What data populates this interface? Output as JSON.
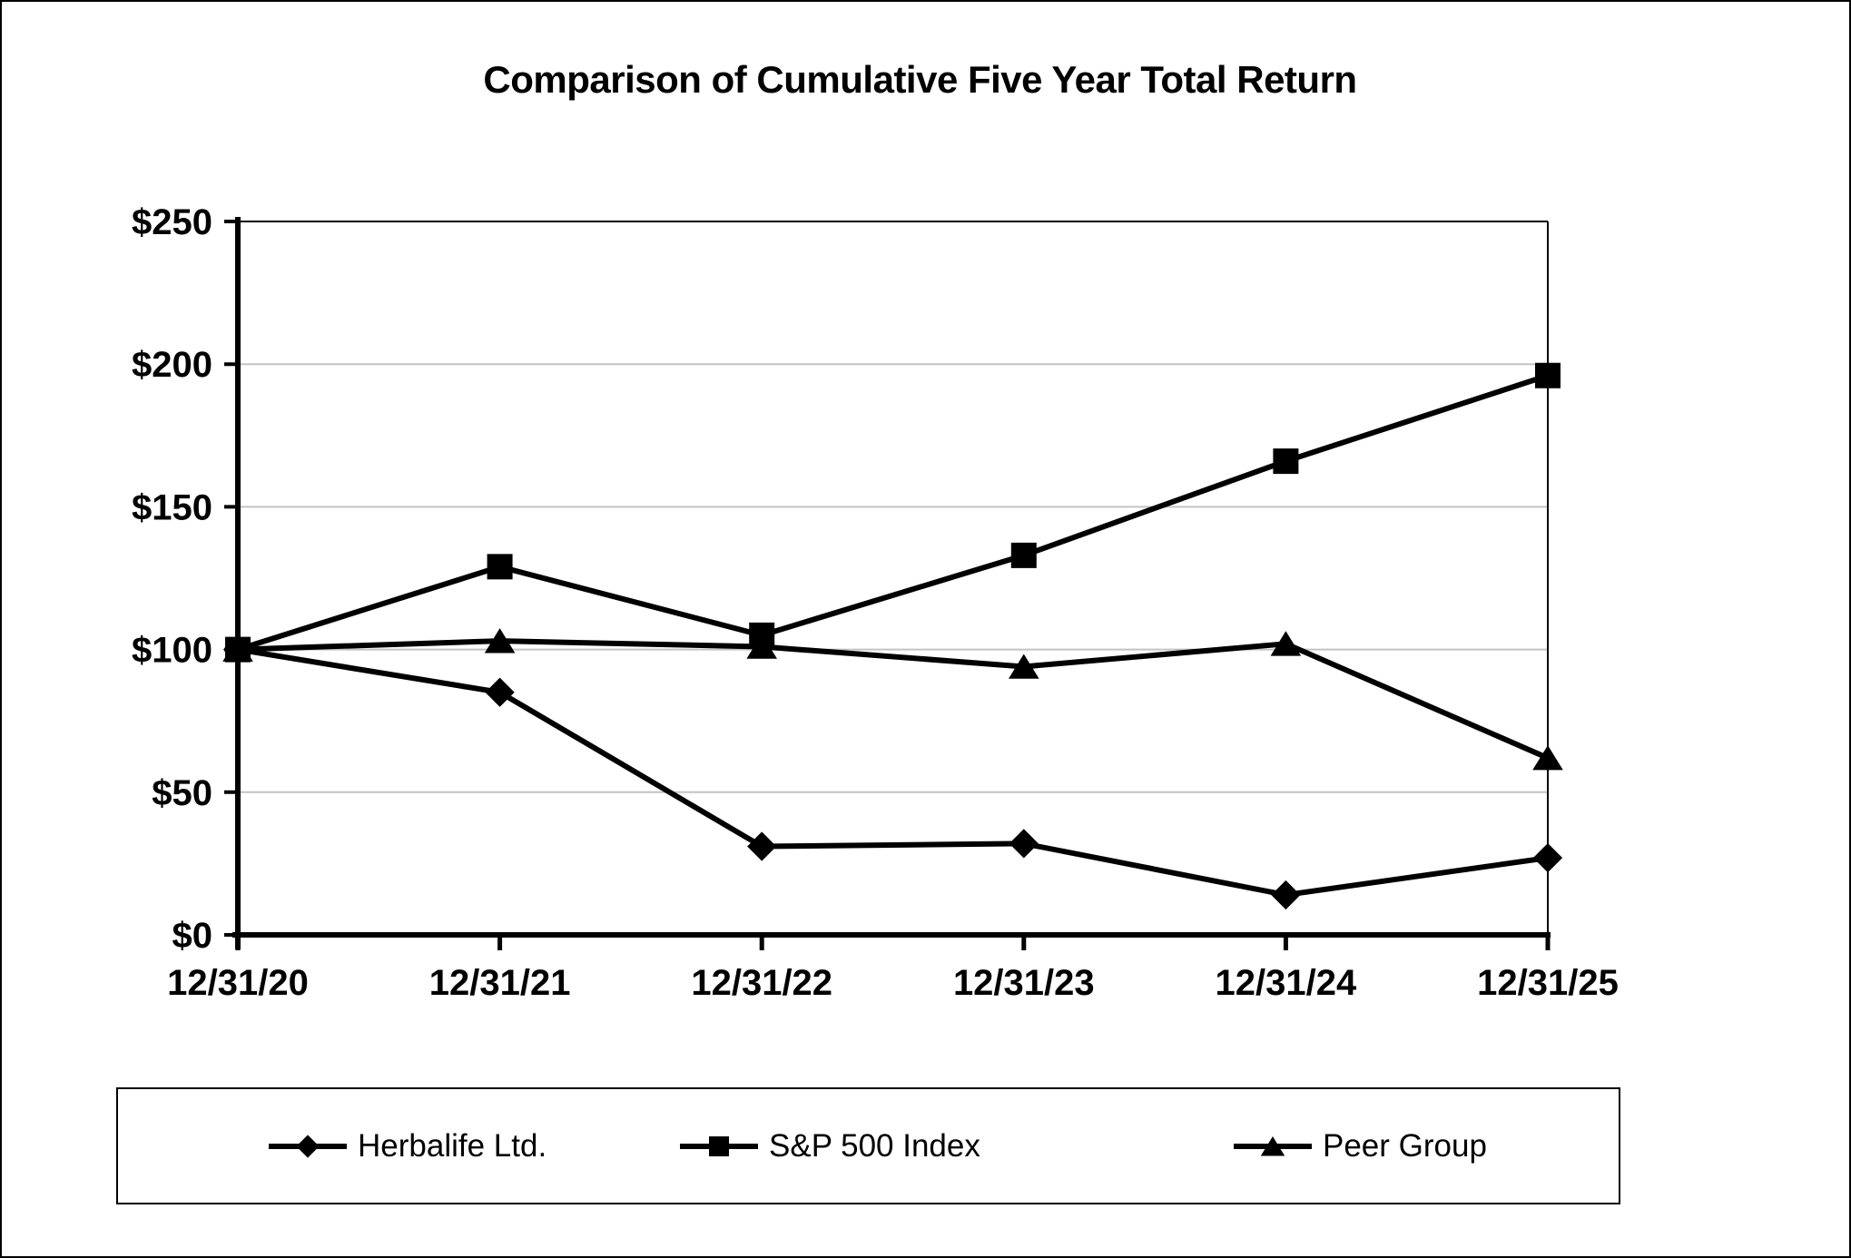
{
  "page": {
    "title": "Comparison of Cumulative Five Year Total Return"
  },
  "chart_data": {
    "type": "line",
    "title": "Comparison of Cumulative Five Year Total Return",
    "categories": [
      "12/31/20",
      "12/31/21",
      "12/31/22",
      "12/31/23",
      "12/31/24",
      "12/31/25"
    ],
    "series": [
      {
        "name": "Herbalife Ltd.",
        "marker": "diamond",
        "values": [
          100,
          85,
          31,
          32,
          14,
          27
        ]
      },
      {
        "name": "S&P 500 Index",
        "marker": "square",
        "values": [
          100,
          129,
          105,
          133,
          166,
          196
        ]
      },
      {
        "name": "Peer Group",
        "marker": "triangle",
        "values": [
          100,
          103,
          101,
          94,
          102,
          62
        ]
      }
    ],
    "ylim": [
      0,
      250
    ],
    "yticks": [
      {
        "value": 0,
        "label": "$0"
      },
      {
        "value": 50,
        "label": "$50"
      },
      {
        "value": 100,
        "label": "$100"
      },
      {
        "value": 150,
        "label": "$150"
      },
      {
        "value": 200,
        "label": "$200"
      },
      {
        "value": 250,
        "label": "$250"
      }
    ],
    "xlabel": "",
    "ylabel": "",
    "grid": "horizontal",
    "legend_position": "bottom",
    "line_color": "#000000",
    "gridline_color": "#c3c3c3",
    "background_color": "#ffffff"
  }
}
